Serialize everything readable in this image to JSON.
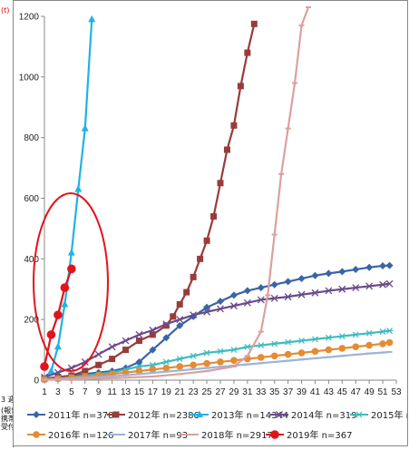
{
  "left_strip": {
    "fragments": [
      "(t)",
      "3 週",
      "(報告",
      "携帯",
      "受付"
    ]
  },
  "chart_data": {
    "type": "line",
    "title": "",
    "xlabel": "",
    "ylabel": "",
    "ylim": [
      0,
      1200
    ],
    "xlim": [
      1,
      53
    ],
    "grid": false,
    "legend_position": "bottom",
    "x_ticks": [
      1,
      3,
      5,
      7,
      9,
      11,
      13,
      15,
      17,
      19,
      21,
      23,
      25,
      27,
      29,
      31,
      33,
      35,
      37,
      39,
      41,
      43,
      45,
      47,
      49,
      51,
      53
    ],
    "y_ticks": [
      0,
      200,
      400,
      600,
      800,
      1000,
      1200
    ],
    "annotation": {
      "type": "ellipse",
      "color": "#e3131b",
      "description": "highlights 2019 series weeks 1-5"
    },
    "series": [
      {
        "name": "2011年 n=378",
        "color": "#3a64a8",
        "marker": "diamond",
        "x": [
          1,
          3,
          5,
          7,
          9,
          11,
          13,
          15,
          17,
          19,
          21,
          23,
          25,
          27,
          29,
          31,
          33,
          35,
          37,
          39,
          41,
          43,
          45,
          47,
          49,
          51,
          52
        ],
        "y": [
          5,
          10,
          15,
          20,
          25,
          30,
          40,
          60,
          100,
          140,
          180,
          210,
          240,
          260,
          280,
          295,
          305,
          315,
          325,
          335,
          345,
          352,
          358,
          365,
          372,
          377,
          378
        ]
      },
      {
        "name": "2012年 n=2386",
        "color": "#9a3b3b",
        "marker": "square",
        "x": [
          1,
          3,
          5,
          7,
          9,
          11,
          13,
          15,
          17,
          19,
          20,
          21,
          22,
          23,
          24,
          25,
          26,
          27,
          28,
          29,
          30,
          31,
          32
        ],
        "y": [
          5,
          10,
          15,
          30,
          50,
          70,
          100,
          130,
          150,
          180,
          210,
          250,
          290,
          340,
          400,
          460,
          540,
          650,
          760,
          840,
          970,
          1080,
          1175
        ]
      },
      {
        "name": "2013年 n=14344",
        "color": "#1fb3e4",
        "marker": "triangle",
        "x": [
          1,
          2,
          3,
          4,
          5,
          6,
          7,
          8
        ],
        "y": [
          5,
          30,
          110,
          250,
          420,
          630,
          830,
          1190
        ]
      },
      {
        "name": "2014年 n=319",
        "color": "#6a4a8c",
        "marker": "x",
        "x": [
          1,
          3,
          5,
          7,
          9,
          11,
          13,
          15,
          17,
          19,
          21,
          23,
          25,
          27,
          29,
          31,
          33,
          35,
          37,
          39,
          41,
          43,
          45,
          47,
          49,
          51,
          52
        ],
        "y": [
          10,
          25,
          40,
          60,
          85,
          110,
          130,
          150,
          165,
          185,
          200,
          215,
          225,
          235,
          245,
          255,
          265,
          270,
          275,
          282,
          288,
          295,
          300,
          305,
          310,
          315,
          318
        ]
      },
      {
        "name": "2015年 n=163",
        "color": "#3dbcbf",
        "marker": "asterisk",
        "x": [
          1,
          3,
          5,
          7,
          9,
          11,
          13,
          15,
          17,
          19,
          21,
          23,
          25,
          27,
          29,
          31,
          33,
          35,
          37,
          39,
          41,
          43,
          45,
          47,
          49,
          51,
          52
        ],
        "y": [
          2,
          5,
          10,
          15,
          20,
          25,
          35,
          45,
          50,
          60,
          70,
          80,
          90,
          95,
          100,
          110,
          115,
          120,
          125,
          130,
          135,
          140,
          145,
          150,
          155,
          160,
          163
        ]
      },
      {
        "name": "2016年 n=126",
        "color": "#e58b33",
        "marker": "circle",
        "x": [
          1,
          3,
          5,
          7,
          9,
          11,
          13,
          15,
          17,
          19,
          21,
          23,
          25,
          27,
          29,
          31,
          33,
          35,
          37,
          39,
          41,
          43,
          45,
          47,
          49,
          51,
          52
        ],
        "y": [
          2,
          5,
          8,
          12,
          16,
          20,
          25,
          30,
          35,
          40,
          45,
          50,
          55,
          60,
          65,
          70,
          75,
          80,
          85,
          90,
          95,
          100,
          105,
          110,
          115,
          120,
          124
        ]
      },
      {
        "name": "2017年 n=93",
        "color": "#9bb5d8",
        "marker": "dash",
        "x": [
          1,
          3,
          5,
          7,
          9,
          11,
          13,
          15,
          17,
          19,
          21,
          23,
          25,
          27,
          29,
          31,
          33,
          35,
          37,
          39,
          41,
          43,
          45,
          47,
          49,
          51,
          52
        ],
        "y": [
          2,
          4,
          6,
          8,
          10,
          13,
          16,
          20,
          24,
          28,
          32,
          36,
          40,
          44,
          48,
          52,
          56,
          60,
          64,
          68,
          72,
          76,
          80,
          84,
          88,
          91,
          93
        ]
      },
      {
        "name": "2018年 n=2917",
        "color": "#dca0a0",
        "marker": "dash",
        "x": [
          1,
          5,
          9,
          13,
          17,
          21,
          25,
          29,
          31,
          33,
          34,
          35,
          36,
          37,
          38,
          39,
          40
        ],
        "y": [
          1,
          2,
          5,
          8,
          12,
          20,
          30,
          45,
          80,
          160,
          280,
          480,
          680,
          830,
          980,
          1170,
          1230
        ]
      },
      {
        "name": "2019年 n=367",
        "color": "#e3131b",
        "marker": "bigcircle",
        "x": [
          1,
          2,
          3,
          4,
          5
        ],
        "y": [
          45,
          150,
          215,
          305,
          367
        ]
      }
    ]
  }
}
